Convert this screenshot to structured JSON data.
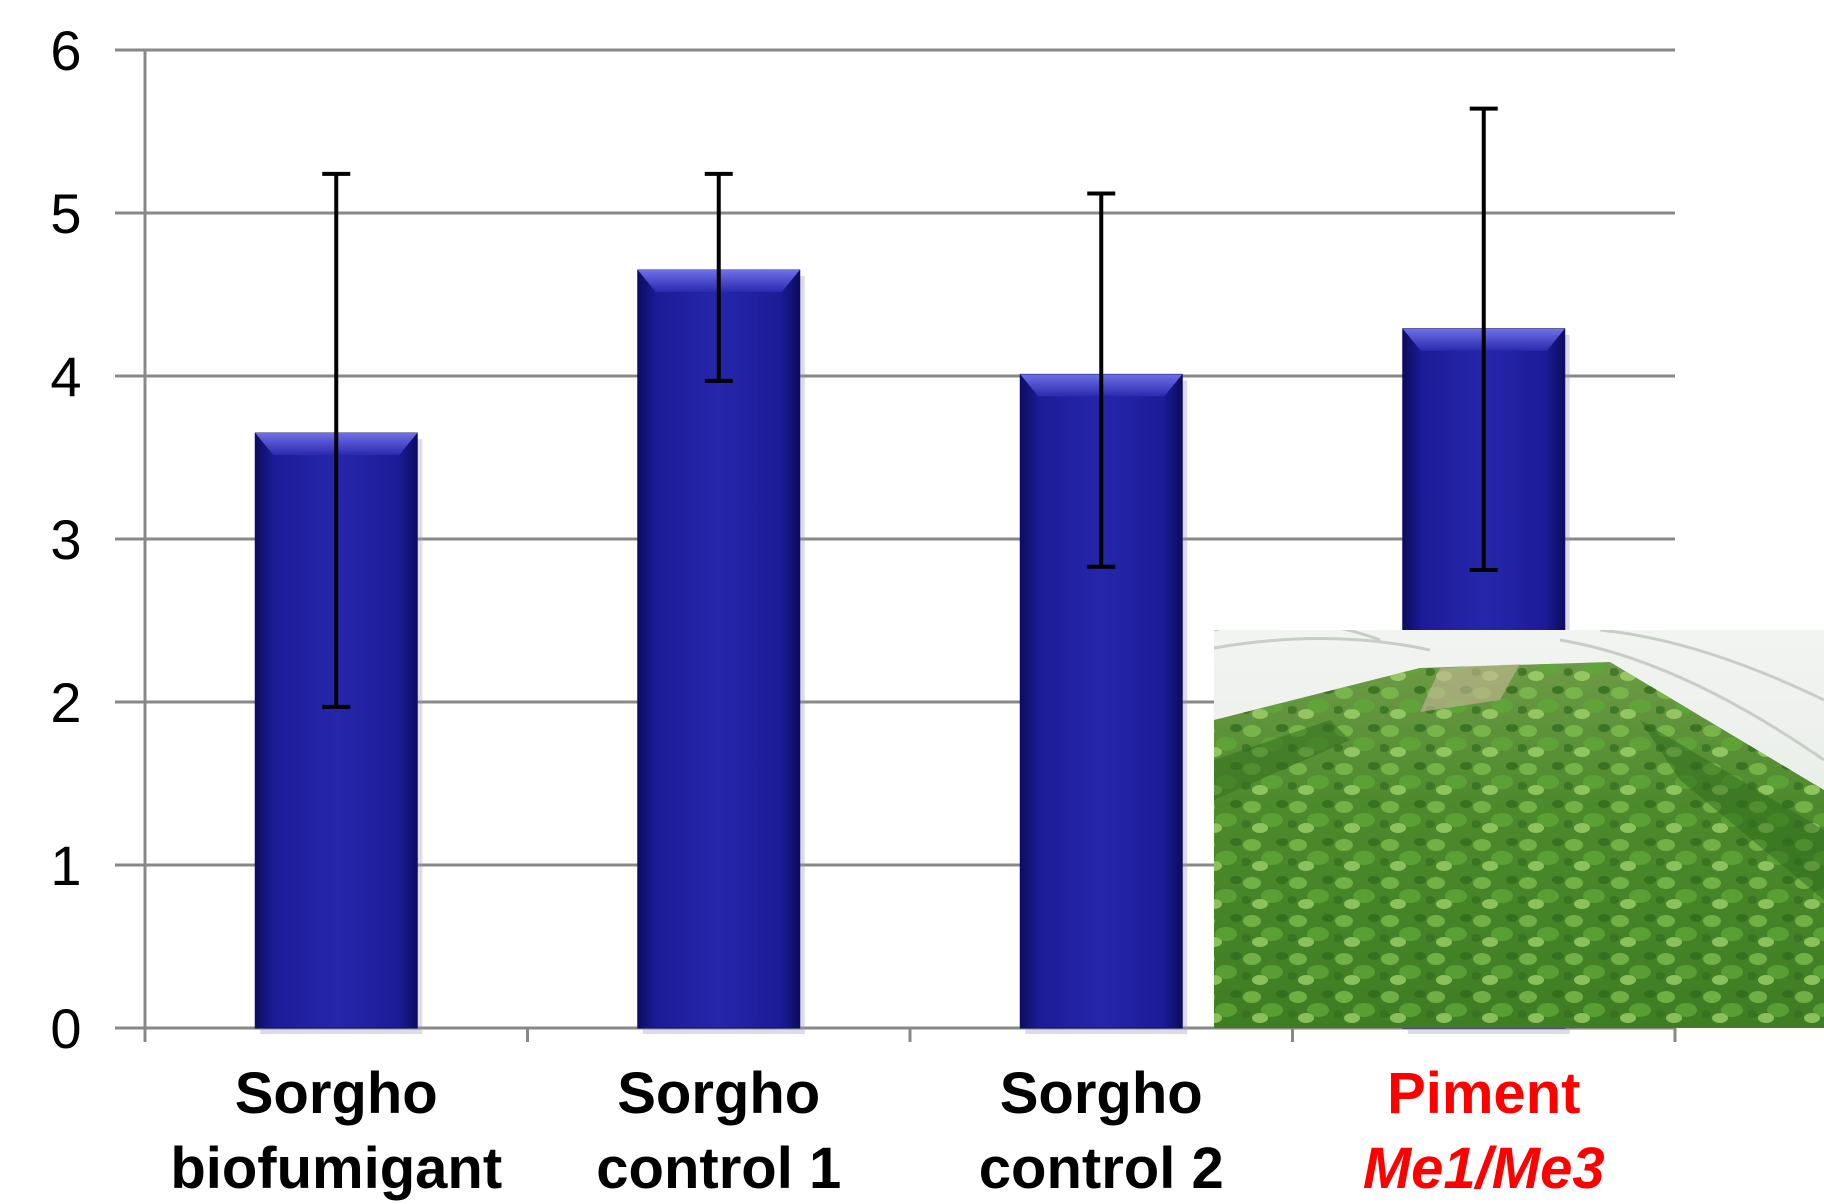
{
  "chart_data": {
    "type": "bar",
    "title": "",
    "xlabel": "",
    "ylabel": "",
    "ylim": [
      0,
      6
    ],
    "yticks": [
      "0",
      "1",
      "2",
      "3",
      "4",
      "5",
      "6"
    ],
    "grid": true,
    "categories": [
      {
        "line1": "Sorgho",
        "line2": "biofumigant",
        "color": "#000000",
        "line2_italic": false
      },
      {
        "line1": "Sorgho",
        "line2": "control 1",
        "color": "#000000",
        "line2_italic": false
      },
      {
        "line1": "Sorgho",
        "line2": "control 2",
        "color": "#000000",
        "line2_italic": false
      },
      {
        "line1": "Piment",
        "line2": "Me1/Me3",
        "color": "#ff0000",
        "line2_italic": true
      }
    ],
    "values": [
      3.65,
      4.65,
      4.01,
      4.29
    ],
    "error_bars": [
      {
        "low": 1.97,
        "high": 5.24
      },
      {
        "low": 3.97,
        "high": 5.24
      },
      {
        "low": 2.83,
        "high": 5.12
      },
      {
        "low": 2.81,
        "high": 5.64
      }
    ],
    "bar_color": "#1a1a8c",
    "inset_photo": "greenhouse-pepper-plants"
  }
}
